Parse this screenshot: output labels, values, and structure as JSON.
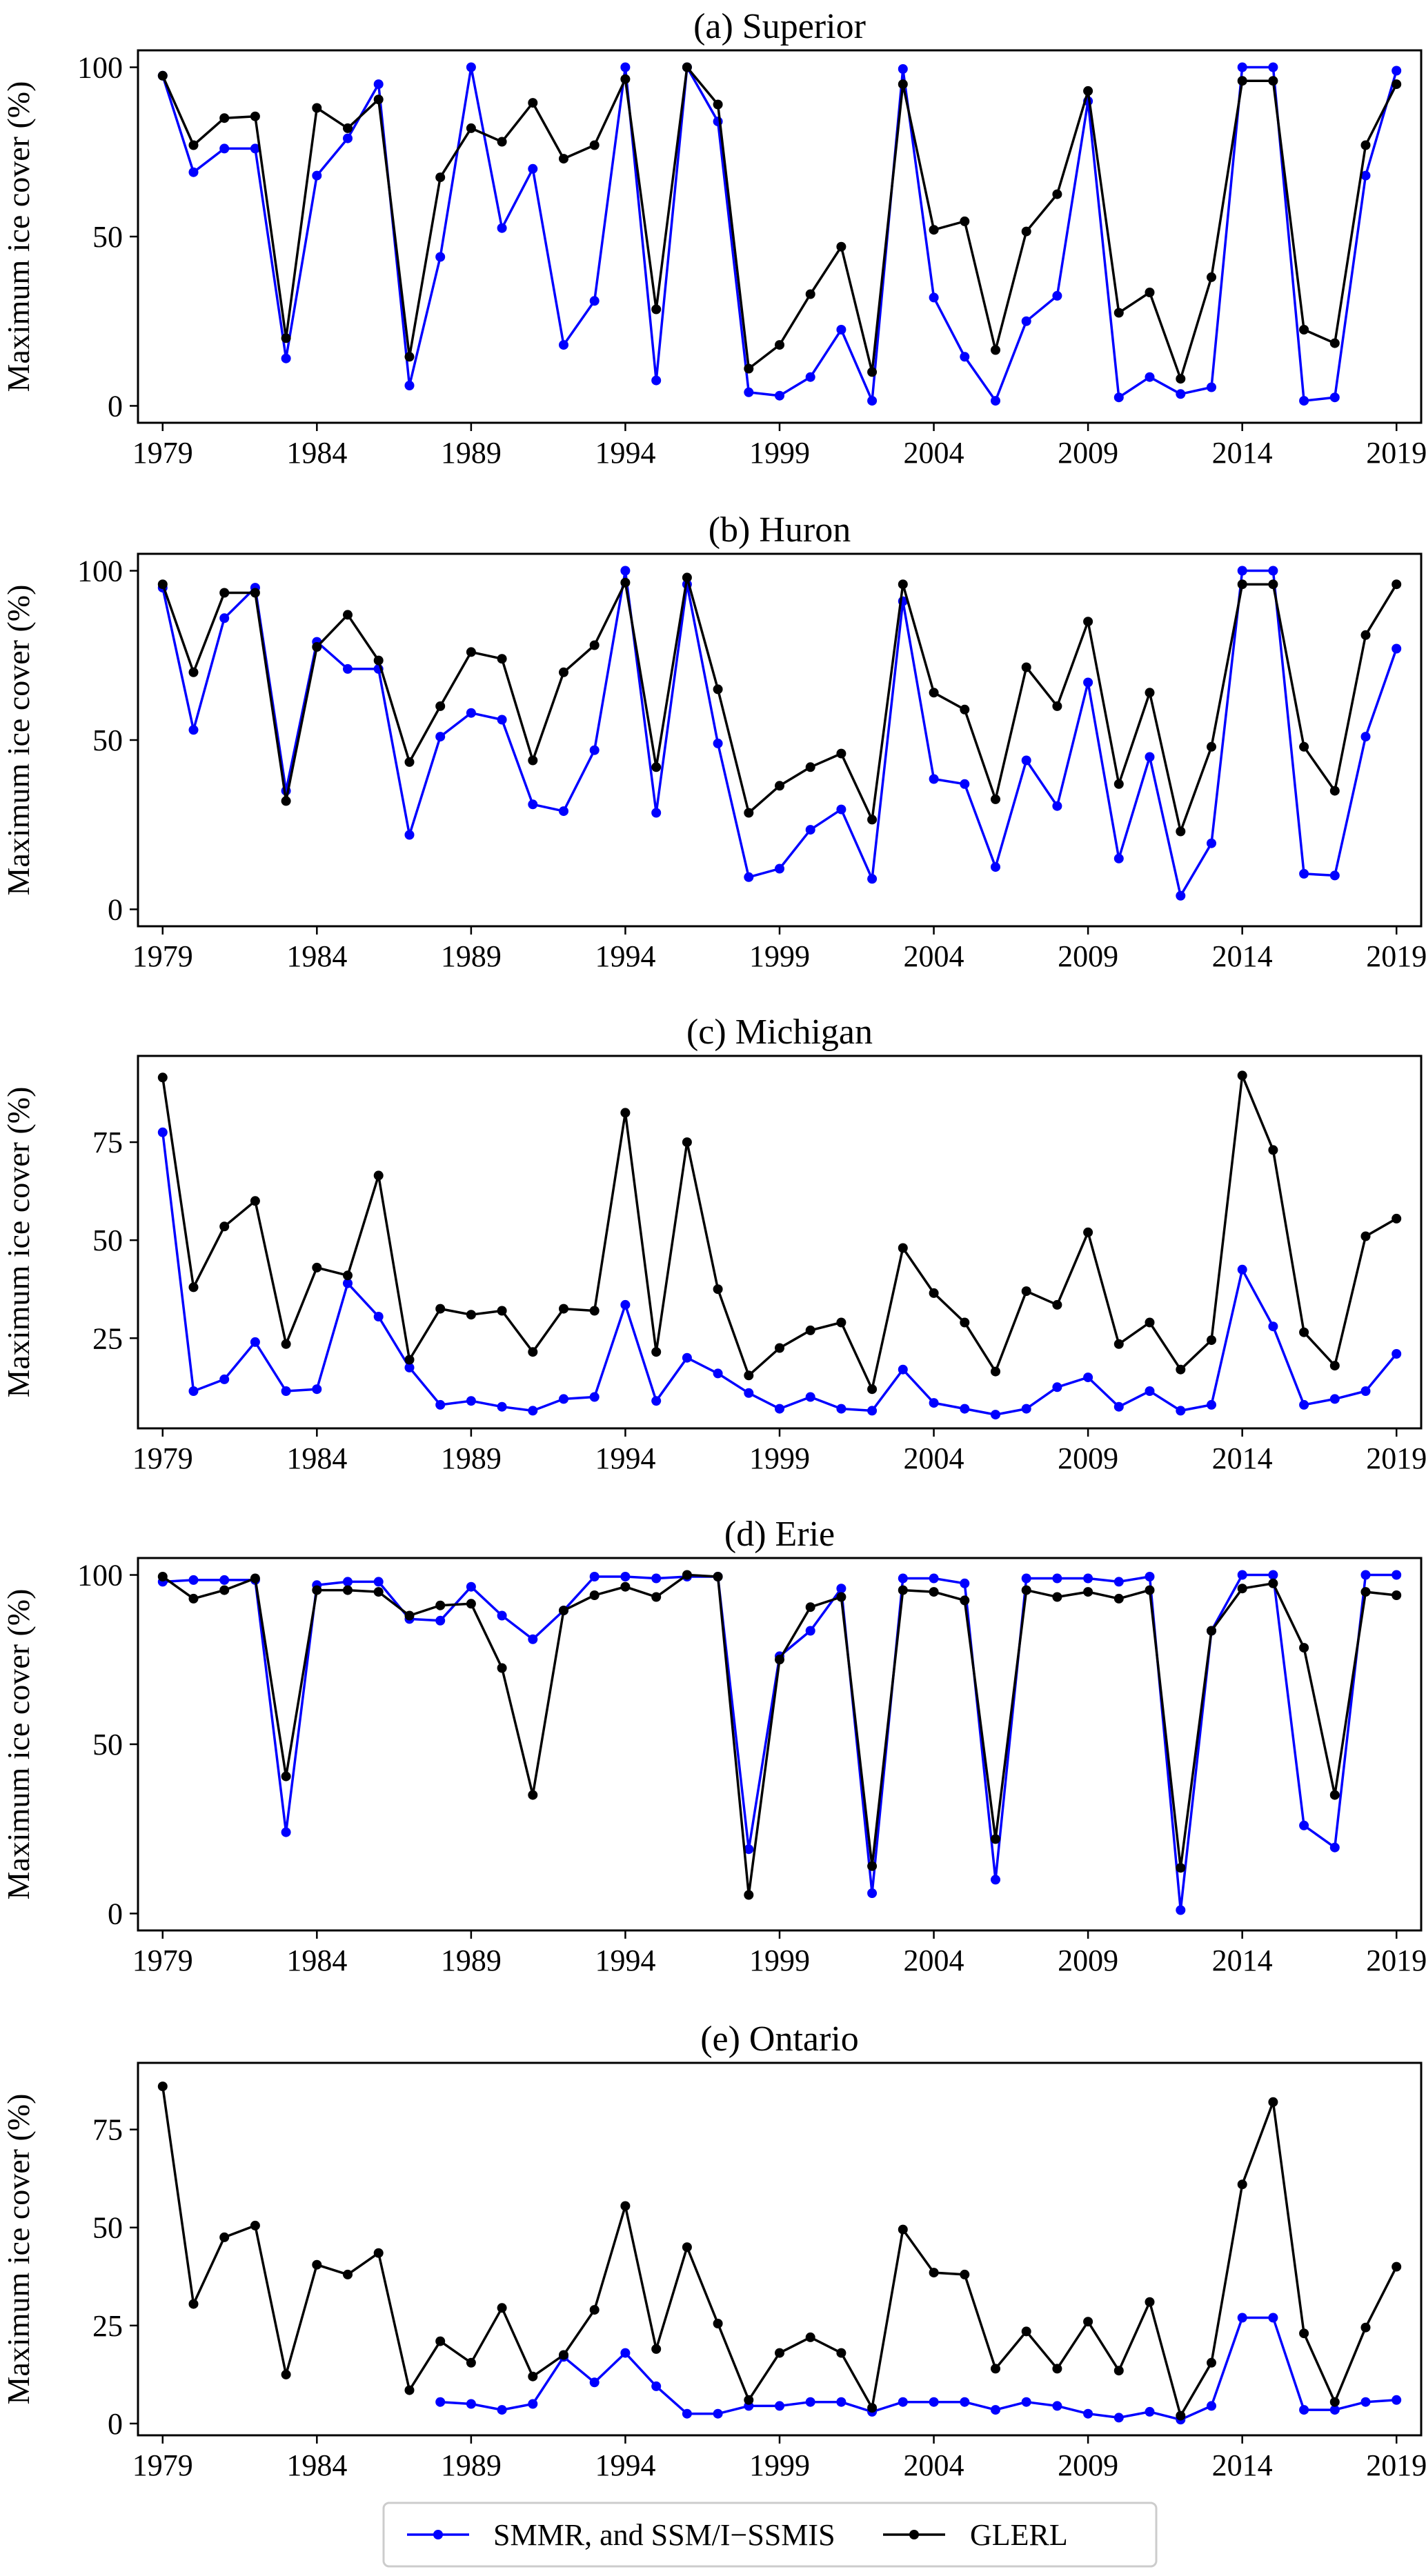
{
  "chart_data": [
    {
      "type": "line",
      "title": "(a) Superior",
      "ylabel": "Maximum ice cover (%)",
      "ylim": [
        -5,
        105
      ],
      "yticks": [
        0,
        50,
        100
      ],
      "xticks": [
        1979,
        1984,
        1989,
        1994,
        1999,
        2004,
        2009,
        2014,
        2019
      ],
      "series": [
        {
          "name": "SMMR, and SSM/I−SSMIS",
          "start_year": 1979,
          "values": [
            97.5,
            69,
            76,
            76,
            14,
            68,
            79,
            95,
            6,
            44,
            100,
            52.5,
            70,
            18,
            31,
            100,
            7.5,
            100,
            84,
            4,
            3,
            8.5,
            22.5,
            1.5,
            99.5,
            32,
            14.5,
            1.5,
            25,
            32.5,
            90,
            2.5,
            8.5,
            3.5,
            5.5,
            100,
            100,
            1.5,
            2.5,
            68,
            99
          ]
        },
        {
          "name": "GLERL",
          "start_year": 1979,
          "values": [
            97.5,
            77,
            85,
            85.5,
            20,
            88,
            82,
            90.5,
            14.5,
            67.5,
            82,
            78,
            89.5,
            73,
            77,
            96.5,
            28.5,
            100,
            89,
            11,
            18,
            33,
            47,
            10,
            95,
            52,
            54.5,
            16.5,
            51.5,
            62.5,
            93,
            27.5,
            33.5,
            8,
            38,
            96,
            96,
            22.5,
            18.5,
            77,
            95
          ]
        }
      ]
    },
    {
      "type": "line",
      "title": "(b) Huron",
      "ylabel": "Maximum ice cover (%)",
      "ylim": [
        -5,
        105
      ],
      "yticks": [
        0,
        50,
        100
      ],
      "xticks": [
        1979,
        1984,
        1989,
        1994,
        1999,
        2004,
        2009,
        2014,
        2019
      ],
      "series": [
        {
          "name": "SMMR, and SSM/I−SSMIS",
          "start_year": 1979,
          "values": [
            95,
            53,
            86,
            95,
            35,
            79,
            71,
            71,
            22,
            51,
            58,
            56,
            31,
            29,
            47,
            100,
            28.5,
            96,
            49,
            9.5,
            12,
            23.5,
            29.5,
            9,
            91,
            38.5,
            37,
            12.5,
            44,
            30.5,
            67,
            15,
            45,
            4,
            19.5,
            100,
            100,
            10.5,
            10,
            51,
            77
          ]
        },
        {
          "name": "GLERL",
          "start_year": 1979,
          "values": [
            96,
            70,
            93.5,
            93.5,
            32,
            77.5,
            87,
            73.5,
            43.5,
            60,
            76,
            74,
            44,
            70,
            78,
            96.5,
            42,
            98,
            65,
            28.5,
            36.5,
            42,
            46,
            26.5,
            96,
            64,
            59,
            32.5,
            71.5,
            60,
            85,
            37,
            64,
            23,
            48,
            96,
            96,
            48,
            35,
            81,
            96
          ]
        }
      ]
    },
    {
      "type": "line",
      "title": "(c) Michigan",
      "ylabel": "Maximum ice cover (%)",
      "ylim": [
        2,
        97
      ],
      "yticks": [
        25,
        50,
        75
      ],
      "xticks": [
        1979,
        1984,
        1989,
        1994,
        1999,
        2004,
        2009,
        2014,
        2019
      ],
      "series": [
        {
          "name": "SMMR, and SSM/I−SSMIS",
          "start_year": 1979,
          "values": [
            77.5,
            11.5,
            14.5,
            24,
            11.5,
            12,
            39,
            30.5,
            17.5,
            8,
            9,
            7.5,
            6.5,
            9.5,
            10,
            33.5,
            9,
            20,
            16,
            11,
            7,
            10,
            7,
            6.5,
            17,
            8.5,
            7,
            5.5,
            7,
            12.5,
            15,
            7.5,
            11.5,
            6.5,
            8,
            42.5,
            28,
            8,
            9.5,
            11.5,
            21
          ]
        },
        {
          "name": "GLERL",
          "start_year": 1979,
          "values": [
            91.5,
            38,
            53.5,
            60,
            23.5,
            43,
            41,
            66.5,
            19.5,
            32.5,
            31,
            32,
            21.5,
            32.5,
            32,
            82.5,
            21.5,
            75,
            37.5,
            15.5,
            22.5,
            27,
            29,
            12,
            48,
            36.5,
            29,
            16.5,
            37,
            33.5,
            52,
            23.5,
            29,
            17,
            24.5,
            92,
            73,
            26.5,
            18,
            51,
            55.5
          ]
        }
      ]
    },
    {
      "type": "line",
      "title": "(d) Erie",
      "ylabel": "Maximum ice cover (%)",
      "ylim": [
        -5,
        105
      ],
      "yticks": [
        0,
        50,
        100
      ],
      "xticks": [
        1979,
        1984,
        1989,
        1994,
        1999,
        2004,
        2009,
        2014,
        2019
      ],
      "series": [
        {
          "name": "SMMR, and SSM/I−SSMIS",
          "start_year": 1979,
          "values": [
            98,
            98.5,
            98.5,
            98.5,
            24,
            97,
            98,
            98,
            87,
            86.5,
            96.5,
            88,
            81,
            89.5,
            99.5,
            99.5,
            99,
            99.5,
            99.5,
            19,
            76,
            83.5,
            96,
            6,
            99,
            99,
            97.5,
            10,
            99,
            99,
            99,
            98,
            99.5,
            1,
            83.5,
            100,
            100,
            26,
            19.5,
            100,
            100
          ]
        },
        {
          "name": "GLERL",
          "start_year": 1979,
          "values": [
            99.5,
            93,
            95.5,
            99,
            40.5,
            95.5,
            95.5,
            95,
            88,
            91,
            91.5,
            72.5,
            35,
            89.5,
            94,
            96.5,
            93.5,
            100,
            99.5,
            5.5,
            75,
            90.5,
            93.5,
            14,
            95.5,
            95,
            92.5,
            22,
            95.5,
            93.5,
            95,
            93,
            95.5,
            13.5,
            83.5,
            96,
            97.5,
            78.5,
            35,
            95,
            94
          ]
        }
      ]
    },
    {
      "type": "line",
      "title": "(e) Ontario",
      "ylabel": "Maximum ice cover (%)",
      "ylim": [
        -3,
        92
      ],
      "yticks": [
        0,
        25,
        50,
        75
      ],
      "xticks": [
        1979,
        1984,
        1989,
        1994,
        1999,
        2004,
        2009,
        2014,
        2019
      ],
      "series": [
        {
          "name": "SMMR, and SSM/I−SSMIS",
          "start_year": 1988,
          "values": [
            5.5,
            5,
            3.5,
            5,
            17,
            10.5,
            18,
            9.5,
            2.5,
            2.5,
            4.5,
            4.5,
            5.5,
            5.5,
            3,
            5.5,
            5.5,
            5.5,
            3.5,
            5.5,
            4.5,
            2.5,
            1.5,
            3,
            1,
            4.5,
            27,
            27,
            3.5,
            3.5,
            5.5,
            6
          ]
        },
        {
          "name": "GLERL",
          "start_year": 1979,
          "values": [
            86,
            30.5,
            47.5,
            50.5,
            12.5,
            40.5,
            38,
            43.5,
            8.5,
            21,
            15.5,
            29.5,
            12,
            17.5,
            29,
            55.5,
            19,
            45,
            25.5,
            6,
            18,
            22,
            18,
            4,
            49.5,
            38.5,
            38,
            14,
            23.5,
            14,
            26,
            13.5,
            31,
            2,
            15.5,
            61,
            82,
            23,
            5.5,
            24.5,
            40
          ]
        }
      ]
    }
  ],
  "legend": {
    "position": "bottom-center",
    "entries": [
      {
        "label": "SMMR, and SSM/I−SSMIS",
        "color": "#0000ff"
      },
      {
        "label": "GLERL",
        "color": "#000000"
      }
    ]
  },
  "colors": {
    "smmr": "#0000ff",
    "glerl": "#000000",
    "axes": "#000000"
  }
}
